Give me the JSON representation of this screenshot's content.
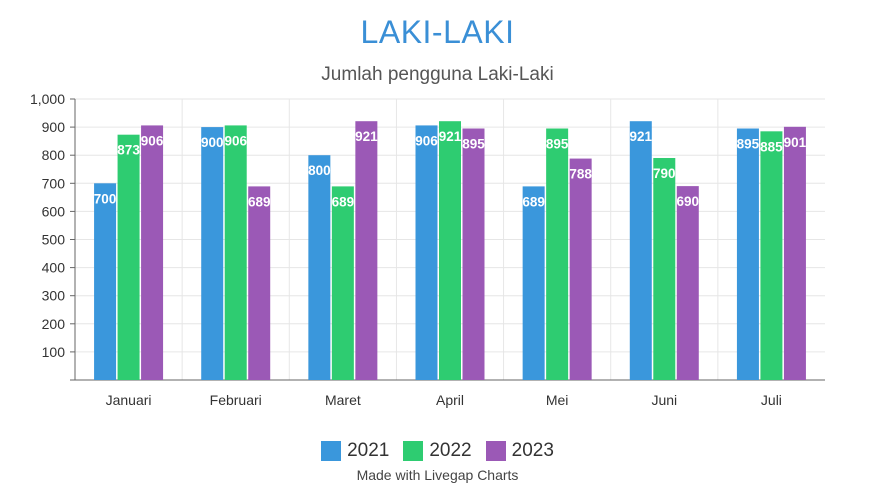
{
  "title": "LAKI-LAKI",
  "subtitle": "Jumlah pengguna Laki-Laki",
  "credit": "Made with Livegap Charts",
  "chart_data": {
    "type": "bar",
    "title": "LAKI-LAKI",
    "subtitle": "Jumlah pengguna Laki-Laki",
    "categories": [
      "Januari",
      "Februari",
      "Maret",
      "April",
      "Mei",
      "Juni",
      "Juli"
    ],
    "series": [
      {
        "name": "2021",
        "color": "#3a97dc",
        "values": [
          700,
          900,
          800,
          906,
          689,
          921,
          895
        ]
      },
      {
        "name": "2022",
        "color": "#2ecc71",
        "values": [
          873,
          906,
          689,
          921,
          895,
          790,
          885
        ]
      },
      {
        "name": "2023",
        "color": "#9b59b6",
        "values": [
          906,
          689,
          921,
          895,
          788,
          690,
          901
        ]
      }
    ],
    "ylim": [
      0,
      1000
    ],
    "yticks": [
      "100",
      "200",
      "300",
      "400",
      "500",
      "600",
      "700",
      "800",
      "900",
      "1,000"
    ],
    "grid": true,
    "legend_position": "bottom"
  }
}
